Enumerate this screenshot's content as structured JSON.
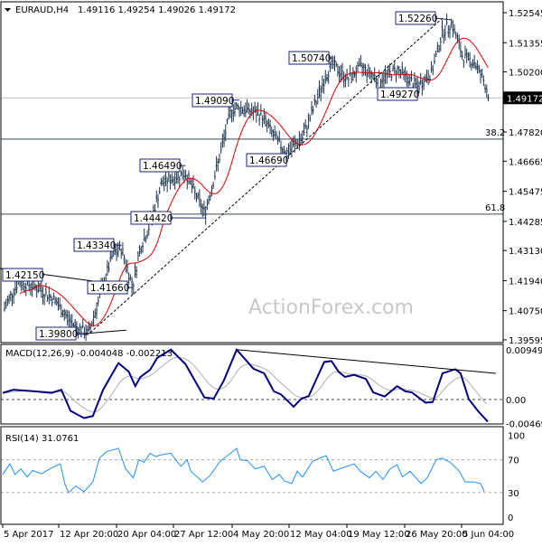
{
  "header": {
    "symbol": "EURAUD,H4",
    "ohlc": "1.49116 1.49254 1.49026 1.49172"
  },
  "watermark": "ActionForex.com",
  "colors": {
    "bars": "#1c3550",
    "ma": "#e00000",
    "macd": "#000080",
    "signal": "#b0b0b0",
    "rsi": "#1e90ff",
    "fib": "#2f4f5f",
    "price_line": "#c0c0c0"
  },
  "chart_data": [
    {
      "type": "ohlc-bar",
      "title": "EURAUD,H4",
      "ylim": [
        1.39595,
        1.52545
      ],
      "y_ticks": [
        "1.52545",
        "1.51355",
        "1.50200",
        "1.47820",
        "1.46665",
        "1.45475",
        "1.44285",
        "1.43130",
        "1.41940",
        "1.40750",
        "1.39595"
      ],
      "x_ticks": [
        "5 Apr 2017",
        "12 Apr 20:00",
        "20 Apr 04:00",
        "27 Apr 12:00",
        "4 May 20:00",
        "12 May 04:00",
        "19 May 12:00",
        "26 May 20:00",
        "5 Jun 04:00"
      ],
      "current_price": "1.49172",
      "close_series": [
        [
          "04-05 06:00",
          1.4085
        ],
        [
          "04-07 04:00",
          1.419
        ],
        [
          "04-09 16:00",
          1.417
        ],
        [
          "04-12 05:00",
          1.412
        ],
        [
          "04-14 13:00",
          1.402
        ],
        [
          "04-16 15:00",
          1.3985
        ],
        [
          "04-18 05:00",
          1.415
        ],
        [
          "04-19 17:00",
          1.43
        ],
        [
          "04-20 20:00",
          1.432
        ],
        [
          "04-22 06:00",
          1.417
        ],
        [
          "04-23 04:00",
          1.432
        ],
        [
          "04-24 07:00",
          1.44
        ],
        [
          "04-26 00:00",
          1.458
        ],
        [
          "04-29 00:00",
          1.462
        ],
        [
          "05-01 10:00",
          1.446
        ],
        [
          "05-03 00:00",
          1.465
        ],
        [
          "05-04 17:00",
          1.487
        ],
        [
          "05-05 18:00",
          1.488
        ],
        [
          "05-08 15:00",
          1.485
        ],
        [
          "05-10 08:00",
          1.476
        ],
        [
          "05-11 20:00",
          1.47
        ],
        [
          "05-13 21:00",
          1.476
        ],
        [
          "05-15 14:00",
          1.49
        ],
        [
          "05-16 18:00",
          1.5
        ],
        [
          "05-17 16:00",
          1.505
        ],
        [
          "05-19 15:00",
          1.499
        ],
        [
          "05-21 08:00",
          1.504
        ],
        [
          "05-23 15:00",
          1.499
        ],
        [
          "05-25 22:00",
          1.503
        ],
        [
          "05-28 22:00",
          1.496
        ],
        [
          "05-31 07:00",
          1.502
        ],
        [
          "06-02 01:00",
          1.518
        ],
        [
          "06-03 13:00",
          1.5215
        ],
        [
          "06-05 08:00",
          1.508
        ],
        [
          "06-07 06:00",
          1.506
        ],
        [
          "06-08 17:00",
          1.499
        ],
        [
          "06-09 18:00",
          1.4917
        ]
      ],
      "moving_average": "red",
      "levels": [
        {
          "label": "38.2",
          "price": 1.4754
        },
        {
          "label": "61.8",
          "price": 1.4457
        }
      ],
      "trendlines": [
        {
          "from": [
            "04-04 15:00",
            1.4242
          ],
          "to": [
            "04-21 10:00",
            1.4174
          ],
          "style": "solid"
        },
        {
          "from": [
            "04-09 16:00",
            1.3968
          ],
          "to": [
            "04-21 10:00",
            1.3998
          ],
          "style": "solid"
        },
        {
          "from": [
            "04-16 20:00",
            1.3988
          ],
          "to": [
            "06-02 01:00",
            1.5233
          ],
          "style": "dashed"
        }
      ],
      "annotations": [
        {
          "text": "1.52260",
          "date": "06-03 13:00",
          "price": 1.5226
        },
        {
          "text": "1.50740",
          "date": "05-17 16:00",
          "price": 1.5074
        },
        {
          "text": "1.49090",
          "date": "05-05 18:00",
          "price": 1.4909
        },
        {
          "text": "1.49270",
          "date": "05-28 22:00",
          "price": 1.4927
        },
        {
          "text": "1.46490",
          "date": "04-29 00:00",
          "price": 1.4649
        },
        {
          "text": "1.46690",
          "date": "05-11 20:00",
          "price": 1.4669
        },
        {
          "text": "1.44420",
          "date": "05-01 10:00",
          "price": 1.4442
        },
        {
          "text": "1.43340",
          "date": "04-20 20:00",
          "price": 1.4334
        },
        {
          "text": "1.42150",
          "date": "04-07 04:00",
          "price": 1.4215
        },
        {
          "text": "1.41660",
          "date": "04-22 06:00",
          "price": 1.4166
        },
        {
          "text": "1.39800",
          "date": "04-16 15:00",
          "price": 1.398
        }
      ]
    },
    {
      "type": "line",
      "title": "MACD(12,26,9) -0.004048 -0.002213",
      "ylim": [
        -0.004693,
        0.009493
      ],
      "y_ticks": [
        "0.009493",
        "0.00",
        "-0.004693"
      ],
      "macd": [
        [
          "04-05 00:00",
          0.0013
        ],
        [
          "04-06 12:00",
          0.0019
        ],
        [
          "04-09 10:00",
          0.0016
        ],
        [
          "04-11 20:00",
          0.0013
        ],
        [
          "04-13 04:00",
          0.0019
        ],
        [
          "04-14 08:00",
          -0.0022
        ],
        [
          "04-16 01:00",
          -0.0036
        ],
        [
          "04-17 04:00",
          -0.0032
        ],
        [
          "04-18 11:00",
          0.0019
        ],
        [
          "04-20 10:00",
          0.0071
        ],
        [
          "04-21 18:00",
          0.0054
        ],
        [
          "04-22 14:00",
          0.0026
        ],
        [
          "04-23 06:00",
          0.0044
        ],
        [
          "04-24 12:00",
          0.0058
        ],
        [
          "04-25 10:00",
          0.0081
        ],
        [
          "04-27 04:00",
          0.0097
        ],
        [
          "04-29 00:00",
          0.0069
        ],
        [
          "05-01 09:00",
          0.0004
        ],
        [
          "05-02 13:00",
          0.0002
        ],
        [
          "05-03 19:00",
          0.0037
        ],
        [
          "05-05 10:00",
          0.0097
        ],
        [
          "05-07 14:00",
          0.006
        ],
        [
          "05-08 23:00",
          0.0051
        ],
        [
          "05-10 05:00",
          0.0016
        ],
        [
          "05-11 03:00",
          0.001
        ],
        [
          "05-12 18:00",
          -0.0014
        ],
        [
          "05-13 16:00",
          0.0001
        ],
        [
          "05-14 16:00",
          0.0007
        ],
        [
          "05-16 15:00",
          0.0073
        ],
        [
          "05-17 13:00",
          0.0075
        ],
        [
          "05-18 11:00",
          0.0054
        ],
        [
          "05-19 06:00",
          0.0044
        ],
        [
          "05-20 10:00",
          0.0048
        ],
        [
          "05-21 22:00",
          0.004
        ],
        [
          "05-22 20:00",
          0.0014
        ],
        [
          "05-24 07:00",
          0.0006
        ],
        [
          "05-25 21:00",
          0.0026
        ],
        [
          "05-26 23:00",
          0.0016
        ],
        [
          "05-28 00:00",
          0.0014
        ],
        [
          "05-30 06:00",
          -0.0006
        ],
        [
          "05-31 10:00",
          -0.0005
        ],
        [
          "06-02 01:00",
          0.0051
        ],
        [
          "06-04 03:00",
          0.0059
        ],
        [
          "06-05 00:00",
          0.0051
        ],
        [
          "06-06 08:00",
          0.0001
        ],
        [
          "06-07 20:00",
          -0.0022
        ],
        [
          "06-09 11:00",
          -0.0043
        ]
      ],
      "trendline": {
        "from": [
          "05-05 10:00",
          0.0097
        ],
        "to": [
          "06-10 19:00",
          0.0051
        ]
      }
    },
    {
      "type": "line",
      "title": "RSI(14) 31.0761",
      "ylim": [
        0,
        100
      ],
      "y_ticks": [
        "100",
        "70",
        "30",
        "0"
      ],
      "levels": [
        70,
        30
      ],
      "rsi": [
        [
          "04-05 00:00",
          52
        ],
        [
          "04-06 00:00",
          65
        ],
        [
          "04-06 18:00",
          52
        ],
        [
          "04-07 13:00",
          59
        ],
        [
          "04-08 10:00",
          49
        ],
        [
          "04-09 04:00",
          57
        ],
        [
          "04-10 10:00",
          53
        ],
        [
          "04-11 20:00",
          60
        ],
        [
          "04-13 01:00",
          65
        ],
        [
          "04-13 15:00",
          40
        ],
        [
          "04-14 02:00",
          30
        ],
        [
          "04-15 00:00",
          38
        ],
        [
          "04-16 01:00",
          31
        ],
        [
          "04-17 04:00",
          43
        ],
        [
          "04-18 00:00",
          72
        ],
        [
          "04-18 22:00",
          80
        ],
        [
          "04-20 10:00",
          84
        ],
        [
          "04-21 08:00",
          59
        ],
        [
          "04-22 08:00",
          48
        ],
        [
          "04-23 01:00",
          70
        ],
        [
          "04-23 17:00",
          67
        ],
        [
          "04-24 12:00",
          78
        ],
        [
          "04-25 05:00",
          74
        ],
        [
          "04-25 21:00",
          76
        ],
        [
          "04-27 04:00",
          78
        ],
        [
          "04-28 10:00",
          62
        ],
        [
          "04-29 05:00",
          70
        ],
        [
          "04-29 16:00",
          56
        ],
        [
          "05-01 04:00",
          43
        ],
        [
          "05-02 02:00",
          51
        ],
        [
          "05-03 08:00",
          68
        ],
        [
          "05-04 06:00",
          75
        ],
        [
          "05-05 10:00",
          84
        ],
        [
          "05-05 21:00",
          70
        ],
        [
          "05-06 19:00",
          69
        ],
        [
          "05-07 19:00",
          59
        ],
        [
          "05-08 23:00",
          62
        ],
        [
          "05-10 00:00",
          46
        ],
        [
          "05-10 22:00",
          52
        ],
        [
          "05-11 14:00",
          44
        ],
        [
          "05-12 12:00",
          41
        ],
        [
          "05-13 05:00",
          56
        ],
        [
          "05-13 21:00",
          49
        ],
        [
          "05-15 03:00",
          68
        ],
        [
          "05-16 01:00",
          72
        ],
        [
          "05-16 21:00",
          75
        ],
        [
          "05-17 19:00",
          56
        ],
        [
          "05-18 14:00",
          59
        ],
        [
          "05-19 12:00",
          62
        ],
        [
          "05-20 10:00",
          65
        ],
        [
          "05-21 05:00",
          56
        ],
        [
          "05-22 09:00",
          48
        ],
        [
          "05-23 04:00",
          56
        ],
        [
          "05-24 02:00",
          46
        ],
        [
          "05-25 00:00",
          59
        ],
        [
          "05-25 21:00",
          64
        ],
        [
          "05-26 13:00",
          49
        ],
        [
          "05-27 17:00",
          56
        ],
        [
          "05-29 12:00",
          41
        ],
        [
          "05-30 13:00",
          48
        ],
        [
          "06-01 00:00",
          70
        ],
        [
          "06-01 22:00",
          72
        ],
        [
          "06-03 06:00",
          67
        ],
        [
          "06-04 17:00",
          57
        ],
        [
          "06-05 18:00",
          43
        ],
        [
          "06-07 06:00",
          43
        ],
        [
          "06-08 07:00",
          41
        ],
        [
          "06-08 21:00",
          31.0761
        ]
      ]
    }
  ]
}
